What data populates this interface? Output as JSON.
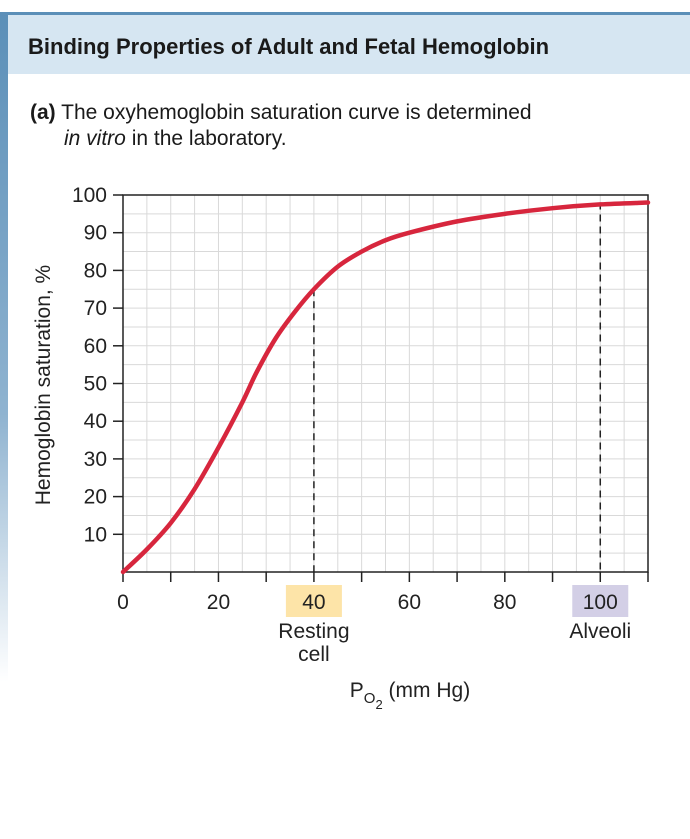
{
  "header": {
    "title": "Binding Properties of Adult and Fetal Hemoglobin"
  },
  "panel": {
    "label": "(a)",
    "caption_line1": "The oxyhemoglobin saturation curve is determined",
    "caption_line2_italic": "in vitro",
    "caption_line2_rest": " in the laboratory."
  },
  "chart_data": {
    "type": "line",
    "ylabel": "Hemoglobin saturation, %",
    "xlabel_main": "P",
    "xlabel_sub": "O",
    "xlabel_subsub": "2",
    "xlabel_unit": " (mm Hg)",
    "xlim": [
      0,
      110
    ],
    "ylim": [
      0,
      100
    ],
    "x_ticks": [
      0,
      20,
      40,
      60,
      80,
      100
    ],
    "y_ticks": [
      10,
      20,
      30,
      40,
      50,
      60,
      70,
      80,
      90,
      100
    ],
    "grid": true,
    "series": [
      {
        "color": "#d7263d",
        "x": [
          0,
          5,
          10,
          15,
          20,
          25,
          28,
          32,
          36,
          40,
          45,
          50,
          55,
          60,
          70,
          80,
          90,
          100,
          110
        ],
        "y": [
          0,
          6,
          13,
          22,
          33,
          45,
          53,
          62,
          69,
          75,
          81,
          85,
          88,
          90,
          93,
          95,
          96.5,
          97.5,
          98
        ]
      }
    ],
    "markers": [
      {
        "x": 40,
        "y": 75,
        "tick_label": "40",
        "label_lines": [
          "Resting",
          "cell"
        ],
        "highlight": "#fde4a8"
      },
      {
        "x": 100,
        "y": 98,
        "tick_label": "100",
        "label_lines": [
          "Alveoli"
        ],
        "highlight": "#d3cfe6"
      }
    ]
  }
}
